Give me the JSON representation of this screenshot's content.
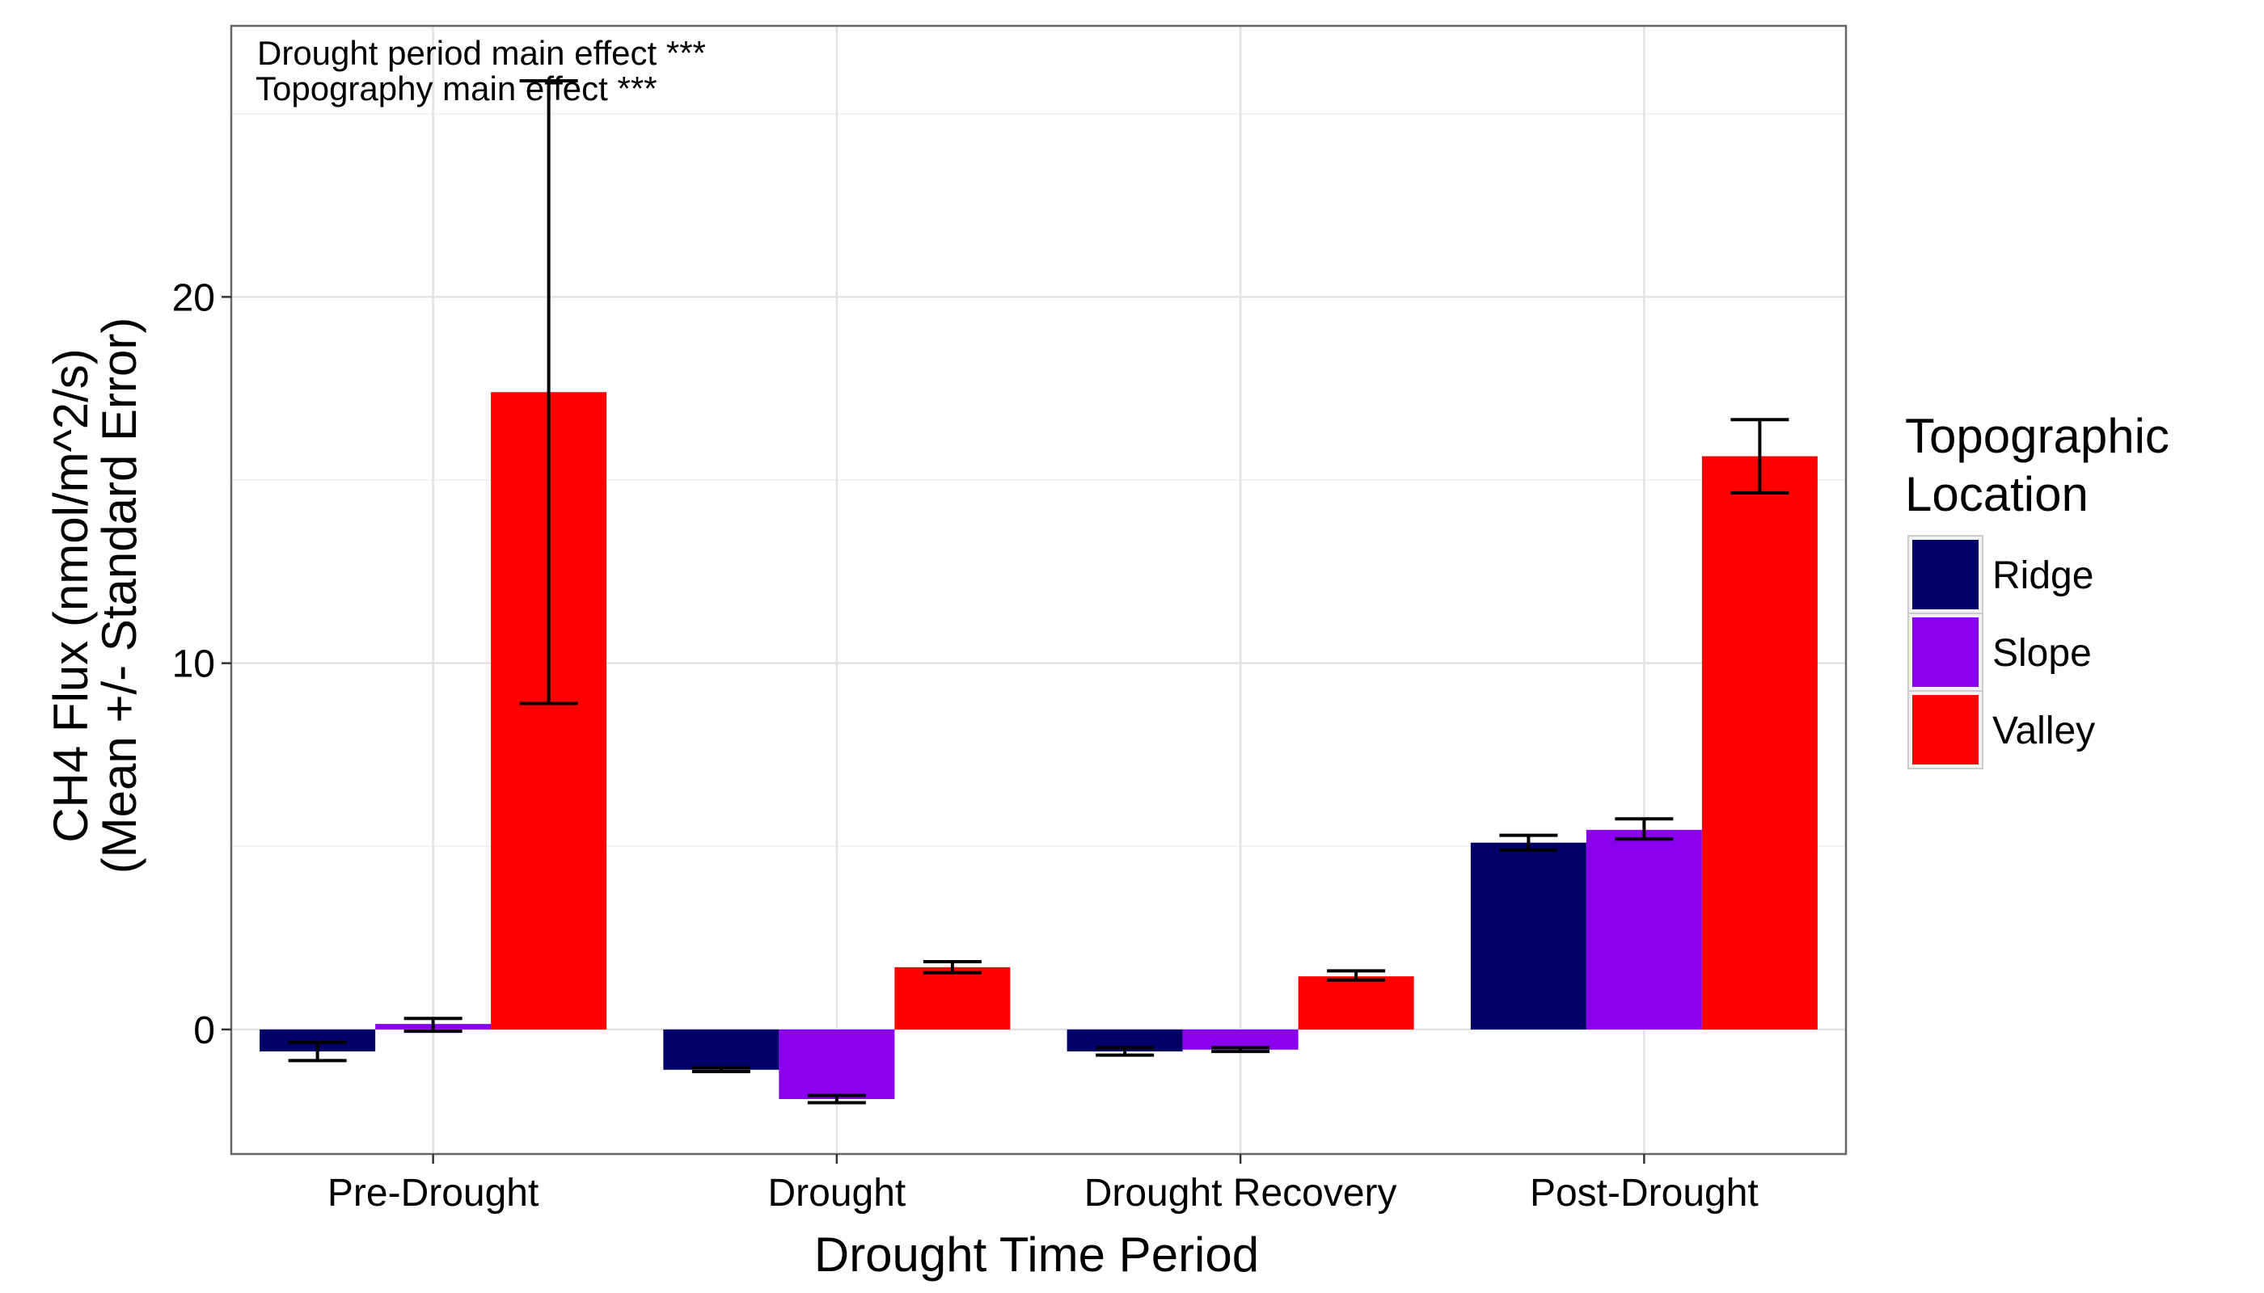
{
  "chart_data": {
    "type": "bar",
    "xlabel": "Drought Time Period",
    "ylabel": [
      "CH4 Flux (nmol/m^2/s)",
      "(Mean +/- Standard Error)"
    ],
    "categories": [
      "Pre-Drought",
      "Drought",
      "Drought Recovery",
      "Post-Drought"
    ],
    "ylim": [
      -3.4,
      27.4
    ],
    "yticks": [
      0,
      10,
      20
    ],
    "grid": true,
    "legend": {
      "title": [
        "Topographic",
        "Location"
      ],
      "position": "right"
    },
    "annotations": [
      "Drought period main effect  ***",
      "Topography main effect  ***"
    ],
    "series": [
      {
        "name": "Ridge",
        "color": "#000066",
        "values": [
          -0.6,
          -1.1,
          -0.6,
          5.1
        ],
        "err_low": [
          -0.85,
          -1.15,
          -0.7,
          4.9
        ],
        "err_high": [
          -0.35,
          -1.05,
          -0.5,
          5.3
        ]
      },
      {
        "name": "Slope",
        "color": "#8800EE",
        "values": [
          0.15,
          -1.9,
          -0.55,
          5.45
        ],
        "err_low": [
          -0.05,
          -2.0,
          -0.6,
          5.2
        ],
        "err_high": [
          0.3,
          -1.8,
          -0.5,
          5.75
        ]
      },
      {
        "name": "Valley",
        "color": "#FF0000",
        "values": [
          17.4,
          1.7,
          1.45,
          15.65
        ],
        "err_low": [
          8.9,
          1.55,
          1.35,
          14.65
        ],
        "err_high": [
          25.9,
          1.85,
          1.6,
          16.65
        ]
      }
    ]
  }
}
